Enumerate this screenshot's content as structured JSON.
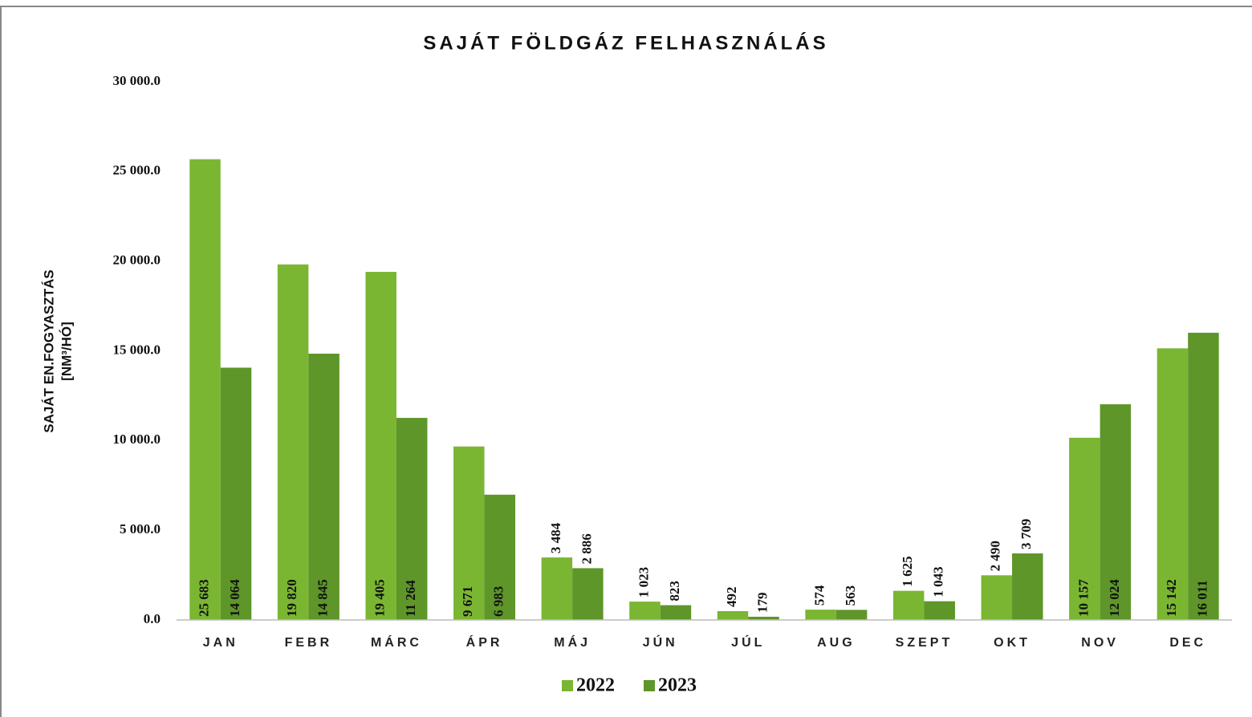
{
  "chart_data": {
    "type": "bar",
    "title": "SAJÁT FÖLDGÁZ FELHASZNÁLÁS",
    "ylabel": [
      "SAJÁT EN.FOGYASZTÁS",
      "[NM³/HÓ]"
    ],
    "categories": [
      "JAN",
      "FEBR",
      "MÁRC",
      "ÁPR",
      "MÁJ",
      "JÚN",
      "JÚL",
      "AUG",
      "SZEPT",
      "OKT",
      "NOV",
      "DEC"
    ],
    "series": [
      {
        "name": "2022",
        "color": "#7ab632",
        "values": [
          25683,
          19820,
          19405,
          9671,
          3484,
          1023,
          492,
          574,
          1625,
          2490,
          10157,
          15142
        ],
        "value_labels": [
          "25 683",
          "19 820",
          "19 405",
          "9 671",
          "3 484",
          "1 023",
          "492",
          "574",
          "1 625",
          "2 490",
          "10 157",
          "15 142"
        ]
      },
      {
        "name": "2023",
        "color": "#5e9629",
        "values": [
          14064,
          14845,
          11264,
          6983,
          2886,
          823,
          179,
          563,
          1043,
          3709,
          12024,
          16011
        ],
        "value_labels": [
          "14 064",
          "14 845",
          "11 264",
          "6 983",
          "2 886",
          "823",
          "179",
          "563",
          "1 043",
          "3 709",
          "12 024",
          "16 011"
        ]
      }
    ],
    "ylim": [
      0,
      30000
    ],
    "yticks": [
      {
        "value": 0,
        "label": "0.0"
      },
      {
        "value": 5000,
        "label": "5 000.0"
      },
      {
        "value": 10000,
        "label": "10 000.0"
      },
      {
        "value": 15000,
        "label": "15 000.0"
      },
      {
        "value": 20000,
        "label": "20 000.0"
      },
      {
        "value": 25000,
        "label": "25 000.0"
      },
      {
        "value": 30000,
        "label": "30 000.0"
      }
    ],
    "legend": "bottom"
  }
}
